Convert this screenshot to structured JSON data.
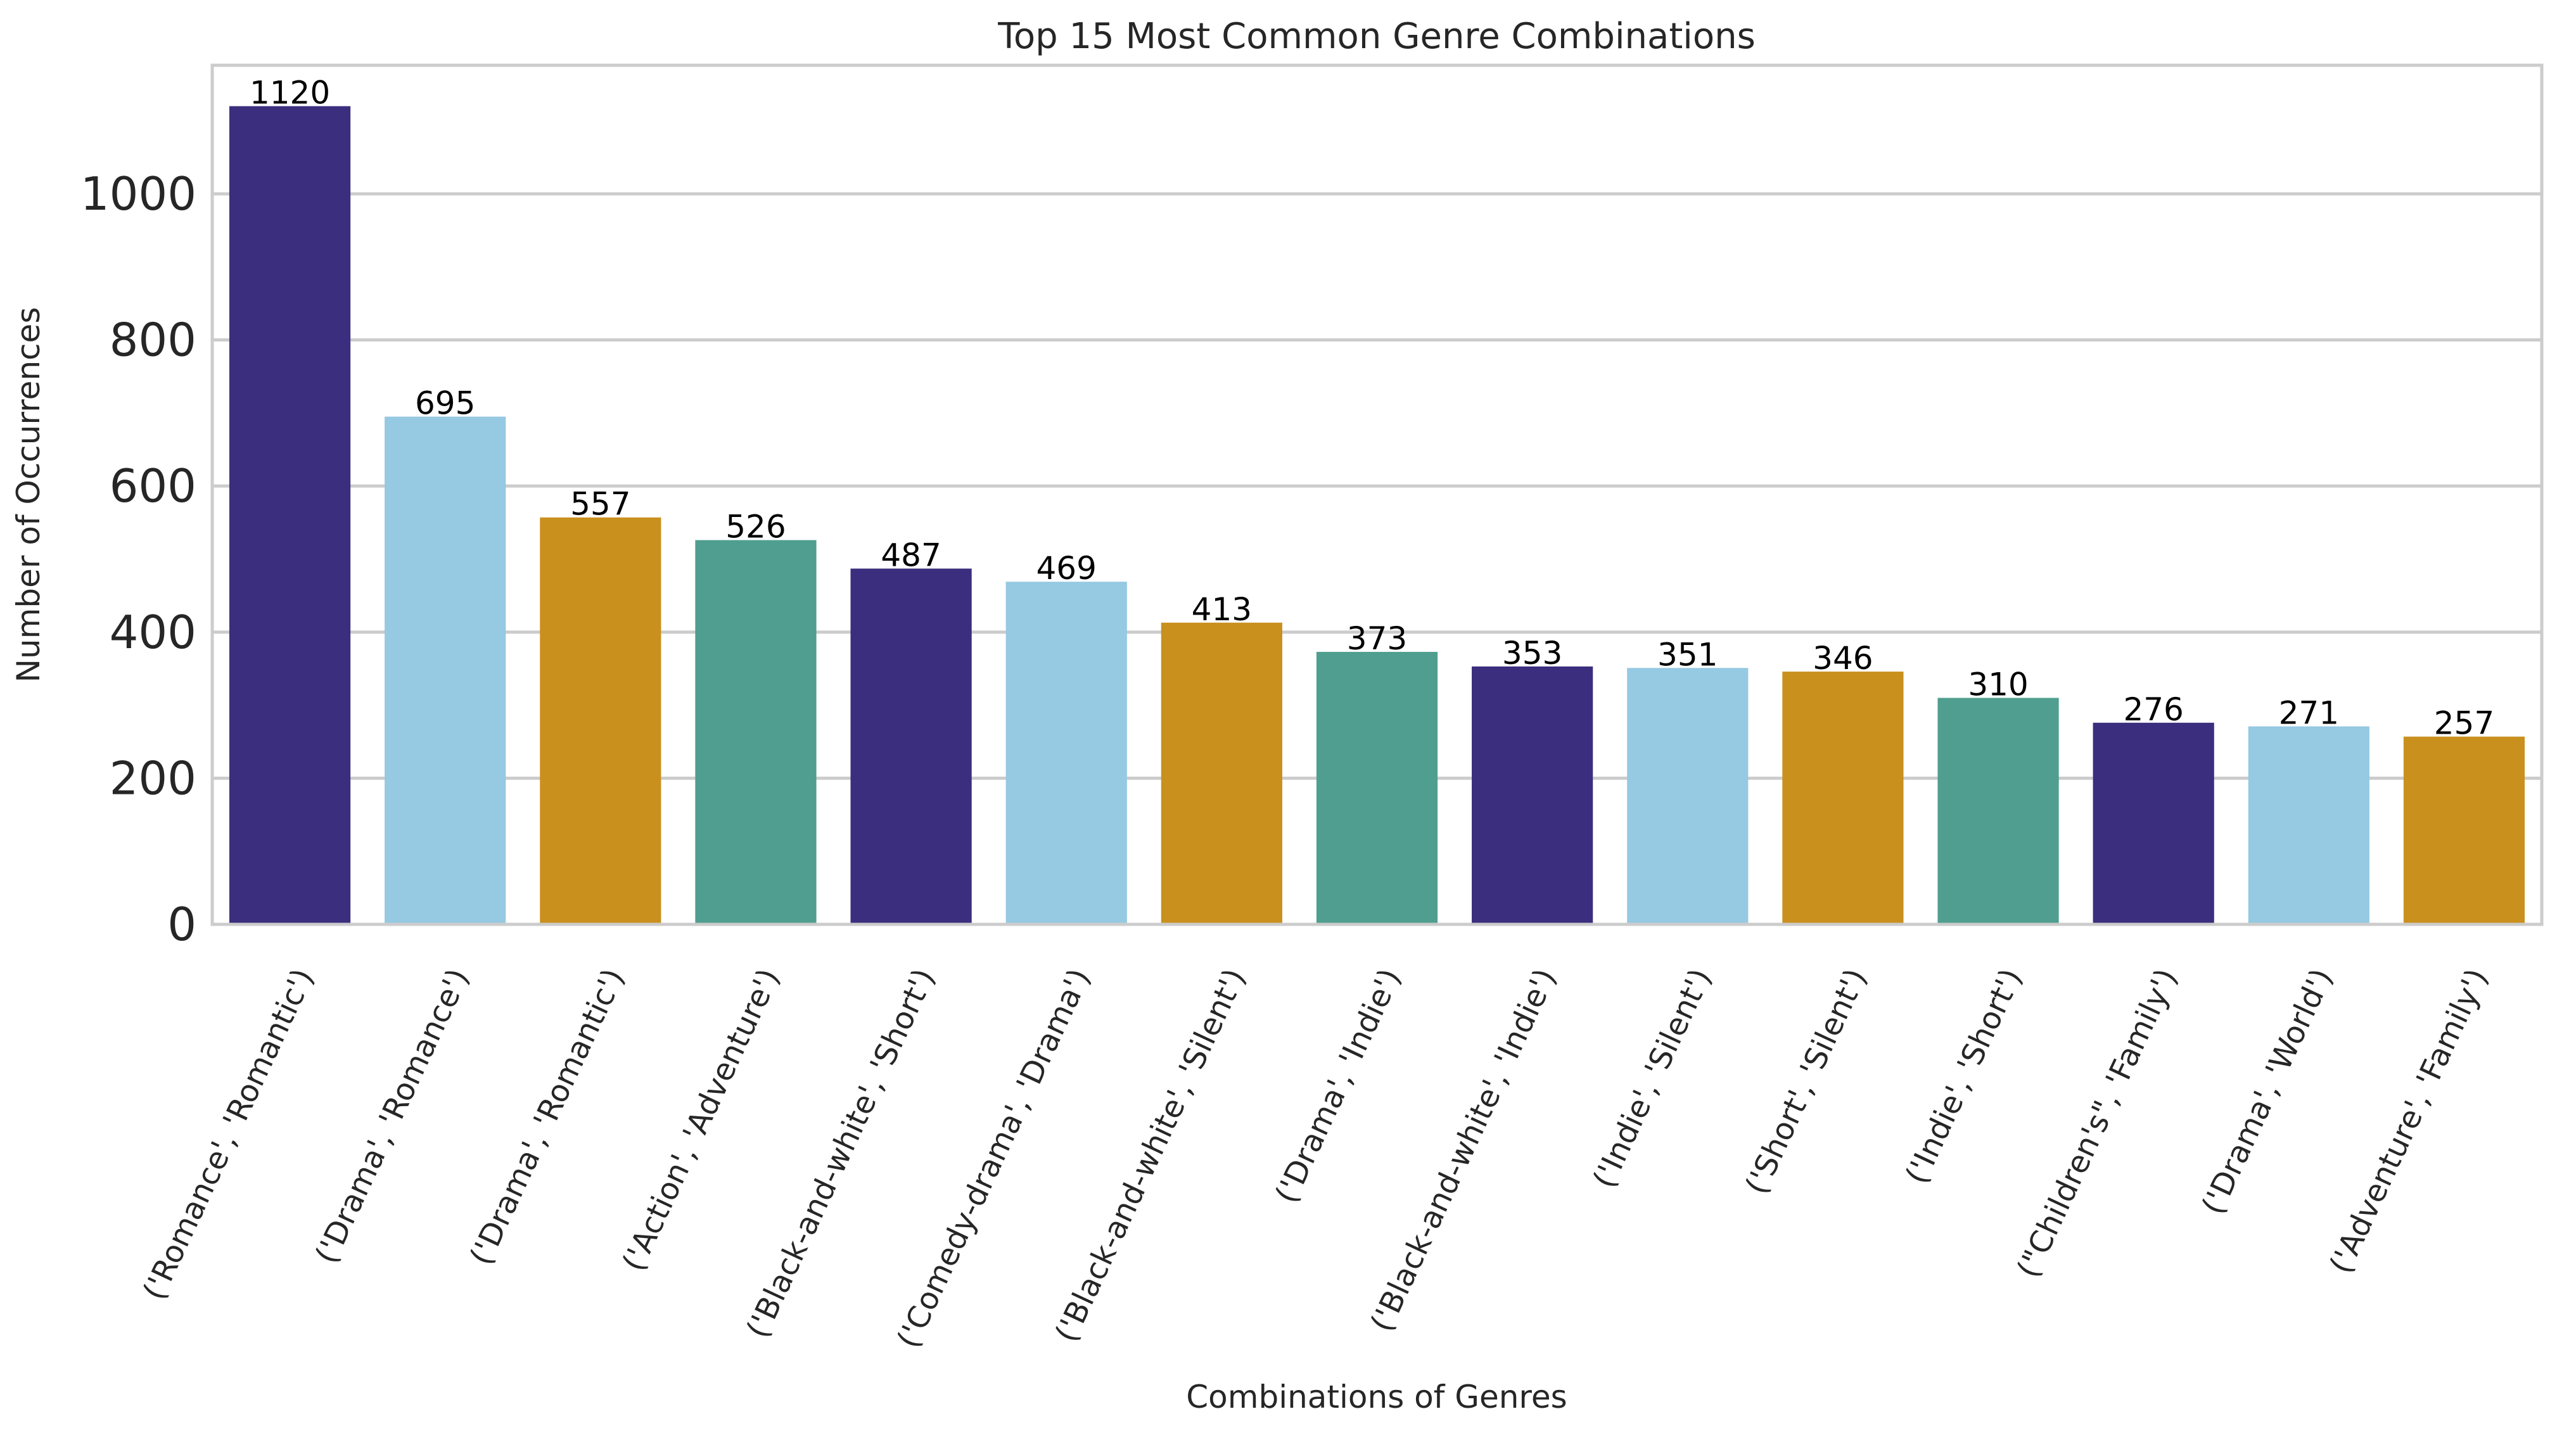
{
  "chart_data": {
    "type": "bar",
    "title": "Top 15 Most Common Genre Combinations",
    "xlabel": "Combinations of Genres",
    "ylabel": "Number of Occurrences",
    "categories": [
      "('Romance', 'Romantic')",
      "('Drama', 'Romance')",
      "('Drama', 'Romantic')",
      "('Action', 'Adventure')",
      "('Black-and-white', 'Short')",
      "('Comedy-drama', 'Drama')",
      "('Black-and-white', 'Silent')",
      "('Drama', 'Indie')",
      "('Black-and-white', 'Indie')",
      "('Indie', 'Silent')",
      "('Short', 'Silent')",
      "('Indie', 'Short')",
      "(\"Children's\", 'Family')",
      "('Drama', 'World')",
      "('Adventure', 'Family')"
    ],
    "values": [
      1120,
      695,
      557,
      526,
      487,
      469,
      413,
      373,
      353,
      351,
      346,
      310,
      276,
      271,
      257
    ],
    "value_labels": [
      "1120",
      "695",
      "557",
      "526",
      "487",
      "469",
      "413",
      "373",
      "353",
      "351",
      "346",
      "310",
      "276",
      "271",
      "257"
    ],
    "ylim": [
      0,
      1176
    ],
    "yticks": [
      0,
      200,
      400,
      600,
      800,
      1000
    ],
    "ytick_labels": [
      "0",
      "200",
      "400",
      "600",
      "800",
      "1000"
    ],
    "grid": "horizontal",
    "legend": "none",
    "palette": [
      "#3b2e7e",
      "#96c9e2",
      "#c9901e",
      "#4f9e8f"
    ]
  }
}
